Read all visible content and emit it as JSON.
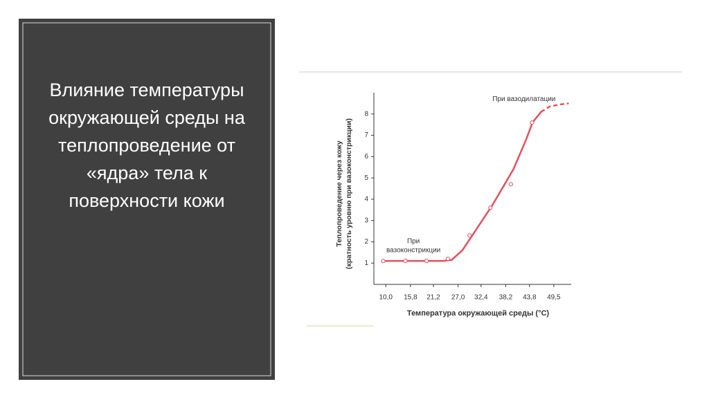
{
  "slide_title": "Влияние температуры окружающей среды на теплопроведение от «ядра» тела к поверхности кожи",
  "chart_data": {
    "type": "line",
    "x_label": "Температура окружающей среды (°С)",
    "y_label": [
      "Теплопроведение через кожу",
      "(кратность уровню при вазоконстрикции)"
    ],
    "xlim": [
      7.2,
      53.6
    ],
    "xticks": [
      {
        "value": 10.0,
        "label": "10,0"
      },
      {
        "value": 15.8,
        "label": "15,8"
      },
      {
        "value": 21.2,
        "label": "21,2"
      },
      {
        "value": 27.0,
        "label": "27,0"
      },
      {
        "value": 32.4,
        "label": "32,4"
      },
      {
        "value": 38.2,
        "label": "38,2"
      },
      {
        "value": 43.8,
        "label": "43,8"
      },
      {
        "value": 49.5,
        "label": "49,5"
      }
    ],
    "ylim": [
      0,
      9
    ],
    "yticks": [
      1,
      2,
      3,
      4,
      5,
      6,
      7,
      8
    ],
    "color": "#e0505c",
    "points": {
      "x": [
        9.4,
        14.6,
        19.6,
        24.6,
        29.7,
        34.6,
        39.4,
        44.4
      ],
      "values": [
        1.1,
        1.1,
        1.1,
        1.2,
        2.3,
        3.6,
        4.7,
        7.6
      ]
    },
    "curve": {
      "x": [
        9.4,
        23.5,
        25.5,
        28,
        30,
        35,
        40,
        43,
        44.5,
        46.5
      ],
      "values": [
        1.1,
        1.1,
        1.15,
        1.6,
        2.2,
        3.7,
        5.4,
        6.8,
        7.6,
        8.1
      ]
    },
    "extension": {
      "x": [
        46.5,
        48.5,
        51,
        53
      ],
      "values": [
        8.1,
        8.35,
        8.45,
        8.5
      ]
    },
    "annotations": [
      {
        "text": [
          "При",
          "вазоконстрикции"
        ],
        "x": 16.5,
        "y": 1.6
      },
      {
        "text": [
          "При вазодилатации"
        ],
        "x": 42.5,
        "y": 8.7
      }
    ]
  }
}
